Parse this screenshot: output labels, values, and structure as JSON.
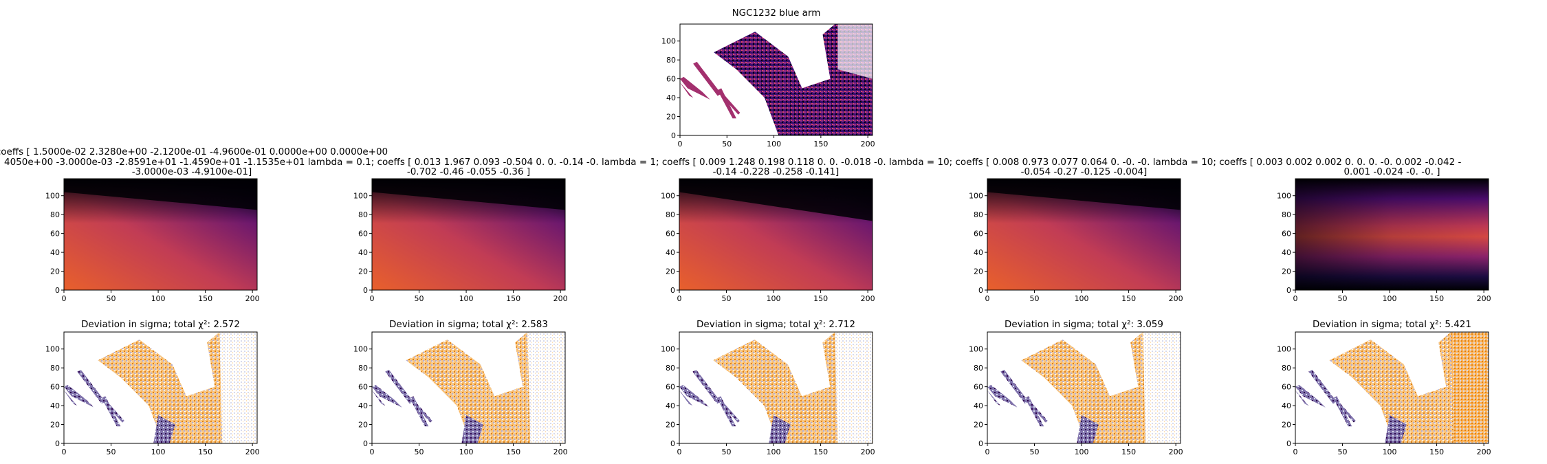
{
  "figure_title": "",
  "chart_data": [
    {
      "id": "data",
      "type": "heatmap",
      "title": "NGC1232 blue arm",
      "xlabel": "",
      "ylabel": "",
      "xlim": [
        0,
        205
      ],
      "ylim": [
        0,
        118
      ],
      "xticks": [
        "0",
        "50",
        "100",
        "150",
        "200"
      ],
      "yticks": [
        "0",
        "20",
        "40",
        "60",
        "80",
        "100"
      ],
      "colormap": "inferno"
    },
    {
      "id": "model-1",
      "type": "heatmap",
      "title_lines": [
        "coeffs [ 1.5000e-02  2.3280e+00 -2.1200e-01 -4.9600e-01  0.0000e+00  0.0000e+00",
        "4050e+00 -3.0000e-03 -2.8591e+01 -1.4590e+01 -1.1535e+01 lambda = 0.1; coeffs [ 0.013  1.967  0.093 -0.504  0.     0.    -0.14  -0.  lambda = 1; coeffs [ 0.009  1.248  0.198  0.118  0.     0.    -0.018 -0.  lambda = 10; coeffs [ 0.008  0.973  0.077  0.064  0.     -0.     -0.  lambda = 10; coeffs [ 0.003  0.002  0.002  0.     0.     0.    -0.     0.002 -0.042 -",
        "-3.0000e-03 -4.9100e-01]"
      ],
      "xlim": [
        0,
        205
      ],
      "ylim": [
        0,
        118
      ],
      "xticks": [
        "0",
        "50",
        "100",
        "150",
        "200"
      ],
      "yticks": [
        "0",
        "20",
        "40",
        "60",
        "80",
        "100"
      ],
      "colormap": "inferno"
    },
    {
      "id": "model-2",
      "type": "heatmap",
      "title_lines": [
        "",
        "",
        "-0.702 -0.46  -0.055 -0.36 ]"
      ],
      "xlim": [
        0,
        205
      ],
      "ylim": [
        0,
        118
      ],
      "xticks": [
        "0",
        "50",
        "100",
        "150",
        "200"
      ],
      "yticks": [
        "0",
        "20",
        "40",
        "60",
        "80",
        "100"
      ],
      "colormap": "inferno"
    },
    {
      "id": "model-3",
      "type": "heatmap",
      "title_lines": [
        "",
        "",
        "-0.14  -0.228 -0.258 -0.141]"
      ],
      "xlim": [
        0,
        205
      ],
      "ylim": [
        0,
        118
      ],
      "xticks": [
        "0",
        "50",
        "100",
        "150",
        "200"
      ],
      "yticks": [
        "0",
        "20",
        "40",
        "60",
        "80",
        "100"
      ],
      "colormap": "inferno"
    },
    {
      "id": "model-4",
      "type": "heatmap",
      "title_lines": [
        "",
        "",
        "-0.054 -0.27  -0.125 -0.004]"
      ],
      "xlim": [
        0,
        205
      ],
      "ylim": [
        0,
        118
      ],
      "xticks": [
        "0",
        "50",
        "100",
        "150",
        "200"
      ],
      "yticks": [
        "0",
        "20",
        "40",
        "60",
        "80",
        "100"
      ],
      "colormap": "inferno"
    },
    {
      "id": "model-5",
      "type": "heatmap",
      "title_lines": [
        "",
        "",
        "0.001 -0.024 -0.    -0.    ]"
      ],
      "xlim": [
        0,
        205
      ],
      "ylim": [
        0,
        118
      ],
      "xticks": [
        "0",
        "50",
        "100",
        "150",
        "200"
      ],
      "yticks": [
        "0",
        "20",
        "40",
        "60",
        "80",
        "100"
      ],
      "colormap": "inferno"
    },
    {
      "id": "dev-1",
      "type": "heatmap",
      "title": "Deviation in sigma; total χ²: 2.572",
      "chi2": 2.572,
      "xlim": [
        0,
        205
      ],
      "ylim": [
        0,
        118
      ],
      "xticks": [
        "0",
        "50",
        "100",
        "150",
        "200"
      ],
      "yticks": [
        "0",
        "20",
        "40",
        "60",
        "80",
        "100"
      ],
      "colormap": "PuOr"
    },
    {
      "id": "dev-2",
      "type": "heatmap",
      "title": "Deviation in sigma; total χ²: 2.583",
      "chi2": 2.583,
      "xlim": [
        0,
        205
      ],
      "ylim": [
        0,
        118
      ],
      "xticks": [
        "0",
        "50",
        "100",
        "150",
        "200"
      ],
      "yticks": [
        "0",
        "20",
        "40",
        "60",
        "80",
        "100"
      ],
      "colormap": "PuOr"
    },
    {
      "id": "dev-3",
      "type": "heatmap",
      "title": "Deviation in sigma; total χ²: 2.712",
      "chi2": 2.712,
      "xlim": [
        0,
        205
      ],
      "ylim": [
        0,
        118
      ],
      "xticks": [
        "0",
        "50",
        "100",
        "150",
        "200"
      ],
      "yticks": [
        "0",
        "20",
        "40",
        "60",
        "80",
        "100"
      ],
      "colormap": "PuOr"
    },
    {
      "id": "dev-4",
      "type": "heatmap",
      "title": "Deviation in sigma; total χ²: 3.059",
      "chi2": 3.059,
      "xlim": [
        0,
        205
      ],
      "ylim": [
        0,
        118
      ],
      "xticks": [
        "0",
        "50",
        "100",
        "150",
        "200"
      ],
      "yticks": [
        "0",
        "20",
        "40",
        "60",
        "80",
        "100"
      ],
      "colormap": "PuOr"
    },
    {
      "id": "dev-5",
      "type": "heatmap",
      "title": "Deviation in sigma; total χ²: 5.421",
      "chi2": 5.421,
      "xlim": [
        0,
        205
      ],
      "ylim": [
        0,
        118
      ],
      "xticks": [
        "0",
        "50",
        "100",
        "150",
        "200"
      ],
      "yticks": [
        "0",
        "20",
        "40",
        "60",
        "80",
        "100"
      ],
      "colormap": "PuOr"
    }
  ]
}
